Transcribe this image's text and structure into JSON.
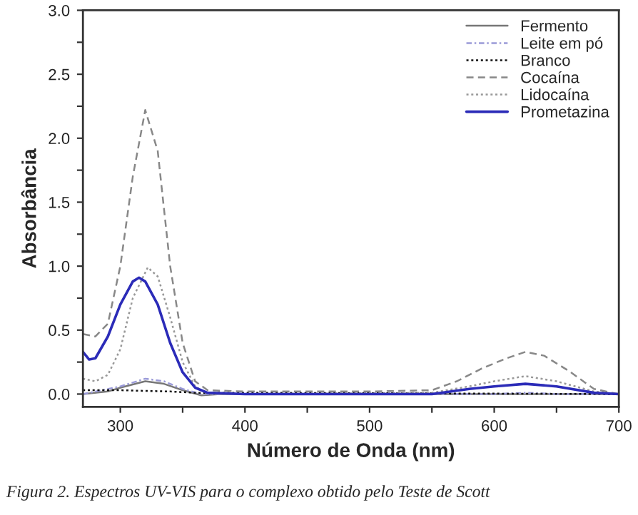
{
  "chart_data": {
    "type": "line",
    "xlabel": "Número de Onda (nm)",
    "ylabel": "Absorbância",
    "annotations": [
      "Figura 2. Espectros UV-VIS para o complexo obtido pelo Teste de Scott"
    ],
    "xlim": [
      270,
      700
    ],
    "ylim": [
      -0.1,
      3.0
    ],
    "xticks": [
      300,
      {
        "value": 350,
        "label": null
      },
      400,
      {
        "value": 450,
        "label": null
      },
      500,
      {
        "value": 550,
        "label": null
      },
      600,
      {
        "value": 650,
        "label": null
      },
      700
    ],
    "yticks": [
      {
        "value": 0,
        "label": "0.0"
      },
      {
        "value": 0.25,
        "label": null
      },
      0.5,
      {
        "value": 0.75,
        "label": null
      },
      {
        "value": 1,
        "label": "1.0"
      },
      {
        "value": 1.25,
        "label": null
      },
      1.5,
      {
        "value": 1.75,
        "label": null
      },
      {
        "value": 2,
        "label": "2.0"
      },
      {
        "value": 2.25,
        "label": null
      },
      2.5,
      {
        "value": 2.75,
        "label": null
      },
      {
        "value": 3,
        "label": "3.0"
      }
    ],
    "grid": false,
    "legend": "top right",
    "marker": "none",
    "series": [
      {
        "name": "Fermento",
        "color": "#777777",
        "line_style": "solid",
        "x": [
          270,
          290,
          300,
          320,
          335,
          350,
          365,
          380,
          700
        ],
        "values": [
          0.0,
          0.02,
          0.05,
          0.1,
          0.08,
          0.03,
          -0.01,
          0.0,
          0.0
        ]
      },
      {
        "name": "Leite em pó",
        "color": "#9a9ad8",
        "line_style": "dashdot",
        "x": [
          270,
          300,
          320,
          335,
          350,
          365,
          600,
          625,
          650,
          700
        ],
        "values": [
          0.0,
          0.06,
          0.12,
          0.1,
          0.04,
          0.0,
          0.0,
          0.01,
          0.0,
          0.0
        ]
      },
      {
        "name": "Branco",
        "color": "#111111",
        "line_style": "dotted",
        "x": [
          270,
          300,
          340,
          360,
          400,
          700
        ],
        "values": [
          0.03,
          0.03,
          0.02,
          0.01,
          0.01,
          0.0
        ]
      },
      {
        "name": "Cocaína",
        "color": "#888888",
        "line_style": "dashed",
        "x": [
          270,
          280,
          290,
          300,
          310,
          320,
          330,
          340,
          350,
          360,
          370,
          400,
          500,
          550,
          570,
          590,
          610,
          625,
          640,
          660,
          680,
          700
        ],
        "values": [
          0.47,
          0.45,
          0.55,
          1.0,
          1.7,
          2.22,
          1.9,
          1.0,
          0.4,
          0.1,
          0.03,
          0.02,
          0.02,
          0.03,
          0.1,
          0.2,
          0.28,
          0.33,
          0.3,
          0.18,
          0.04,
          0.0
        ]
      },
      {
        "name": "Lidocaína",
        "color": "#999999",
        "line_style": "dotted",
        "x": [
          270,
          280,
          290,
          300,
          310,
          322,
          330,
          340,
          350,
          360,
          370,
          400,
          550,
          580,
          600,
          625,
          650,
          680,
          700
        ],
        "values": [
          0.12,
          0.1,
          0.15,
          0.35,
          0.75,
          0.99,
          0.92,
          0.6,
          0.25,
          0.06,
          0.0,
          0.0,
          0.01,
          0.06,
          0.1,
          0.14,
          0.1,
          0.02,
          0.0
        ]
      },
      {
        "name": "Prometazina",
        "color": "#2b2bb8",
        "line_style": "solid",
        "x": [
          270,
          275,
          280,
          290,
          300,
          310,
          315,
          320,
          330,
          340,
          350,
          360,
          370,
          400,
          550,
          580,
          600,
          625,
          650,
          680,
          700
        ],
        "values": [
          0.33,
          0.27,
          0.28,
          0.45,
          0.7,
          0.88,
          0.91,
          0.88,
          0.7,
          0.4,
          0.17,
          0.05,
          0.01,
          0.0,
          0.0,
          0.04,
          0.06,
          0.08,
          0.06,
          0.01,
          0.0
        ]
      }
    ]
  }
}
